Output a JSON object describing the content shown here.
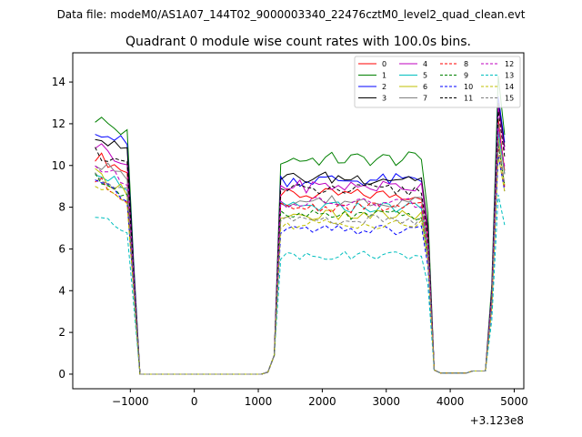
{
  "header": {
    "file_line": "Data file: modeM0/AS1A07_144T02_9000003340_22476cztM0_level2_quad_clean.evt"
  },
  "chart_data": {
    "type": "line",
    "title": "Quadrant 0 module wise count rates with 100.0s bins.",
    "xlabel": "",
    "ylabel": "",
    "x_offset_label": "+3.123e8",
    "xlim": [
      -1900,
      5150
    ],
    "ylim": [
      -0.7,
      15.4
    ],
    "x_ticks": [
      -1000,
      0,
      1000,
      2000,
      3000,
      4000,
      5000
    ],
    "x_tick_labels": [
      "−1000",
      "0",
      "1000",
      "2000",
      "3000",
      "4000",
      "5000"
    ],
    "y_ticks": [
      0,
      2,
      4,
      6,
      8,
      10,
      12,
      14
    ],
    "y_tick_labels": [
      "0",
      "2",
      "4",
      "6",
      "8",
      "10",
      "12",
      "14"
    ],
    "grid": false,
    "legend_position": "top-right",
    "time_bins": [
      -1550,
      -1450,
      -1350,
      -1250,
      -1150,
      -1050,
      -950,
      -850,
      -750,
      -650,
      -550,
      -450,
      -350,
      -250,
      -150,
      -50,
      50,
      150,
      250,
      350,
      450,
      550,
      650,
      750,
      850,
      950,
      1050,
      1150,
      1250,
      1350,
      1450,
      1550,
      1650,
      1750,
      1850,
      1950,
      2050,
      2150,
      2250,
      2350,
      2450,
      2550,
      2650,
      2750,
      2850,
      2950,
      3050,
      3150,
      3250,
      3350,
      3450,
      3550,
      3650,
      3750,
      3850,
      3950,
      4050,
      4150,
      4250,
      4350,
      4450,
      4550,
      4650,
      4750,
      4850
    ],
    "series": [
      {
        "name": "0",
        "color": "#ff0000",
        "dashed": false,
        "base_left": 10.5,
        "base_mid": 8.6,
        "base_right": 12.2
      },
      {
        "name": "1",
        "color": "#008000",
        "dashed": false,
        "base_left": 12.3,
        "base_mid": 10.3,
        "base_right": 14.3
      },
      {
        "name": "2",
        "color": "#0000ff",
        "dashed": false,
        "base_left": 11.8,
        "base_mid": 9.3,
        "base_right": 13.3
      },
      {
        "name": "3",
        "color": "#000000",
        "dashed": false,
        "base_left": 11.4,
        "base_mid": 9.4,
        "base_right": 13.0
      },
      {
        "name": "4",
        "color": "#bf00bf",
        "dashed": false,
        "base_left": 11.0,
        "base_mid": 9.0,
        "base_right": 12.8
      },
      {
        "name": "5",
        "color": "#00bfbf",
        "dashed": false,
        "base_left": 9.8,
        "base_mid": 8.0,
        "base_right": 11.6
      },
      {
        "name": "6",
        "color": "#bfbf00",
        "dashed": false,
        "base_left": 9.6,
        "base_mid": 7.6,
        "base_right": 11.3
      },
      {
        "name": "7",
        "color": "#808080",
        "dashed": false,
        "base_left": 10.2,
        "base_mid": 8.3,
        "base_right": 12.0
      },
      {
        "name": "8",
        "color": "#ff0000",
        "dashed": true,
        "base_left": 9.3,
        "base_mid": 8.0,
        "base_right": 11.0
      },
      {
        "name": "9",
        "color": "#008000",
        "dashed": true,
        "base_left": 9.4,
        "base_mid": 7.6,
        "base_right": 11.0
      },
      {
        "name": "10",
        "color": "#0000ff",
        "dashed": true,
        "base_left": 9.2,
        "base_mid": 6.9,
        "base_right": 10.5
      },
      {
        "name": "11",
        "color": "#000000",
        "dashed": true,
        "base_left": 10.7,
        "base_mid": 8.8,
        "base_right": 12.6
      },
      {
        "name": "12",
        "color": "#bf00bf",
        "dashed": true,
        "base_left": 10.0,
        "base_mid": 8.2,
        "base_right": 11.8
      },
      {
        "name": "13",
        "color": "#00bfbf",
        "dashed": true,
        "base_left": 7.6,
        "base_mid": 5.7,
        "base_right": 8.6
      },
      {
        "name": "14",
        "color": "#bfbf00",
        "dashed": true,
        "base_left": 9.0,
        "base_mid": 7.2,
        "base_right": 10.5
      },
      {
        "name": "15",
        "color": "#808080",
        "dashed": true,
        "base_left": 9.6,
        "base_mid": 7.4,
        "base_right": 11.2
      }
    ]
  }
}
